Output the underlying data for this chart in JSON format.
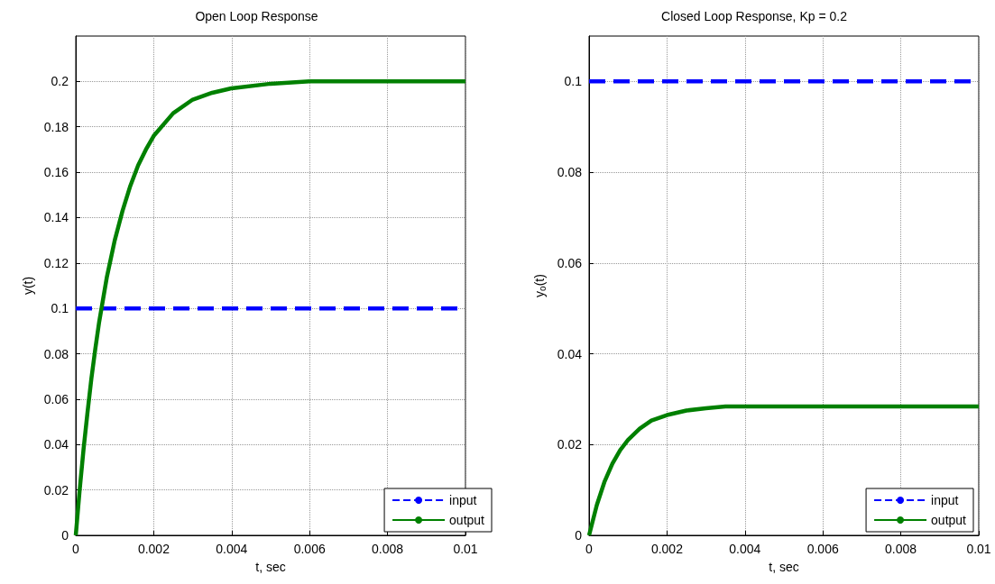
{
  "chart_data": [
    {
      "type": "line",
      "title": "Open Loop Response",
      "xlabel": "t, sec",
      "ylabel": "y(t)",
      "xlim": [
        0,
        0.01
      ],
      "xticks": [
        0,
        0.002,
        0.004,
        0.006,
        0.008,
        0.01
      ],
      "ylim": [
        0,
        0.22
      ],
      "yticks": [
        0,
        0.02,
        0.04,
        0.06,
        0.08,
        0.1,
        0.12,
        0.14,
        0.16,
        0.18,
        0.2
      ],
      "grid": true,
      "legend": "bottom right",
      "series": [
        {
          "name": "input",
          "color": "#0000ff",
          "line_style": "dashed",
          "x": [
            0,
            0.01
          ],
          "values": [
            0.1,
            0.1
          ]
        },
        {
          "name": "output",
          "color": "#008000",
          "line_style": "solid",
          "x": [
            0,
            0.0001,
            0.0002,
            0.0003,
            0.0004,
            0.0005,
            0.0006,
            0.0007,
            0.0008,
            0.001,
            0.0012,
            0.0014,
            0.0016,
            0.0018,
            0.002,
            0.0025,
            0.003,
            0.0035,
            0.004,
            0.005,
            0.006,
            0.01
          ],
          "values": [
            0,
            0.02,
            0.038,
            0.054,
            0.069,
            0.082,
            0.094,
            0.104,
            0.114,
            0.13,
            0.143,
            0.154,
            0.163,
            0.17,
            0.176,
            0.186,
            0.192,
            0.195,
            0.197,
            0.199,
            0.2,
            0.2
          ]
        }
      ]
    },
    {
      "type": "line",
      "title": "Closed Loop Response, Kp = 0.2",
      "xlabel": "t, sec",
      "ylabel": "y$_{o}$(t)",
      "xlim": [
        0,
        0.01
      ],
      "xticks": [
        0,
        0.002,
        0.004,
        0.006,
        0.008,
        0.01
      ],
      "ylim": [
        0,
        0.11
      ],
      "yticks": [
        0,
        0.02,
        0.04,
        0.06,
        0.08,
        0.1
      ],
      "grid": true,
      "legend": "bottom right",
      "series": [
        {
          "name": "input",
          "color": "#0000ff",
          "line_style": "dashed",
          "x": [
            0,
            0.01
          ],
          "values": [
            0.1,
            0.1
          ]
        },
        {
          "name": "output",
          "color": "#008000",
          "line_style": "solid",
          "x": [
            0,
            0.0002,
            0.0004,
            0.0006,
            0.0008,
            0.001,
            0.0013,
            0.0016,
            0.002,
            0.0025,
            0.003,
            0.0035,
            0.01
          ],
          "values": [
            0,
            0.0067,
            0.0119,
            0.0158,
            0.0188,
            0.021,
            0.0235,
            0.0253,
            0.0265,
            0.0275,
            0.028,
            0.0284,
            0.0284
          ]
        }
      ]
    }
  ]
}
